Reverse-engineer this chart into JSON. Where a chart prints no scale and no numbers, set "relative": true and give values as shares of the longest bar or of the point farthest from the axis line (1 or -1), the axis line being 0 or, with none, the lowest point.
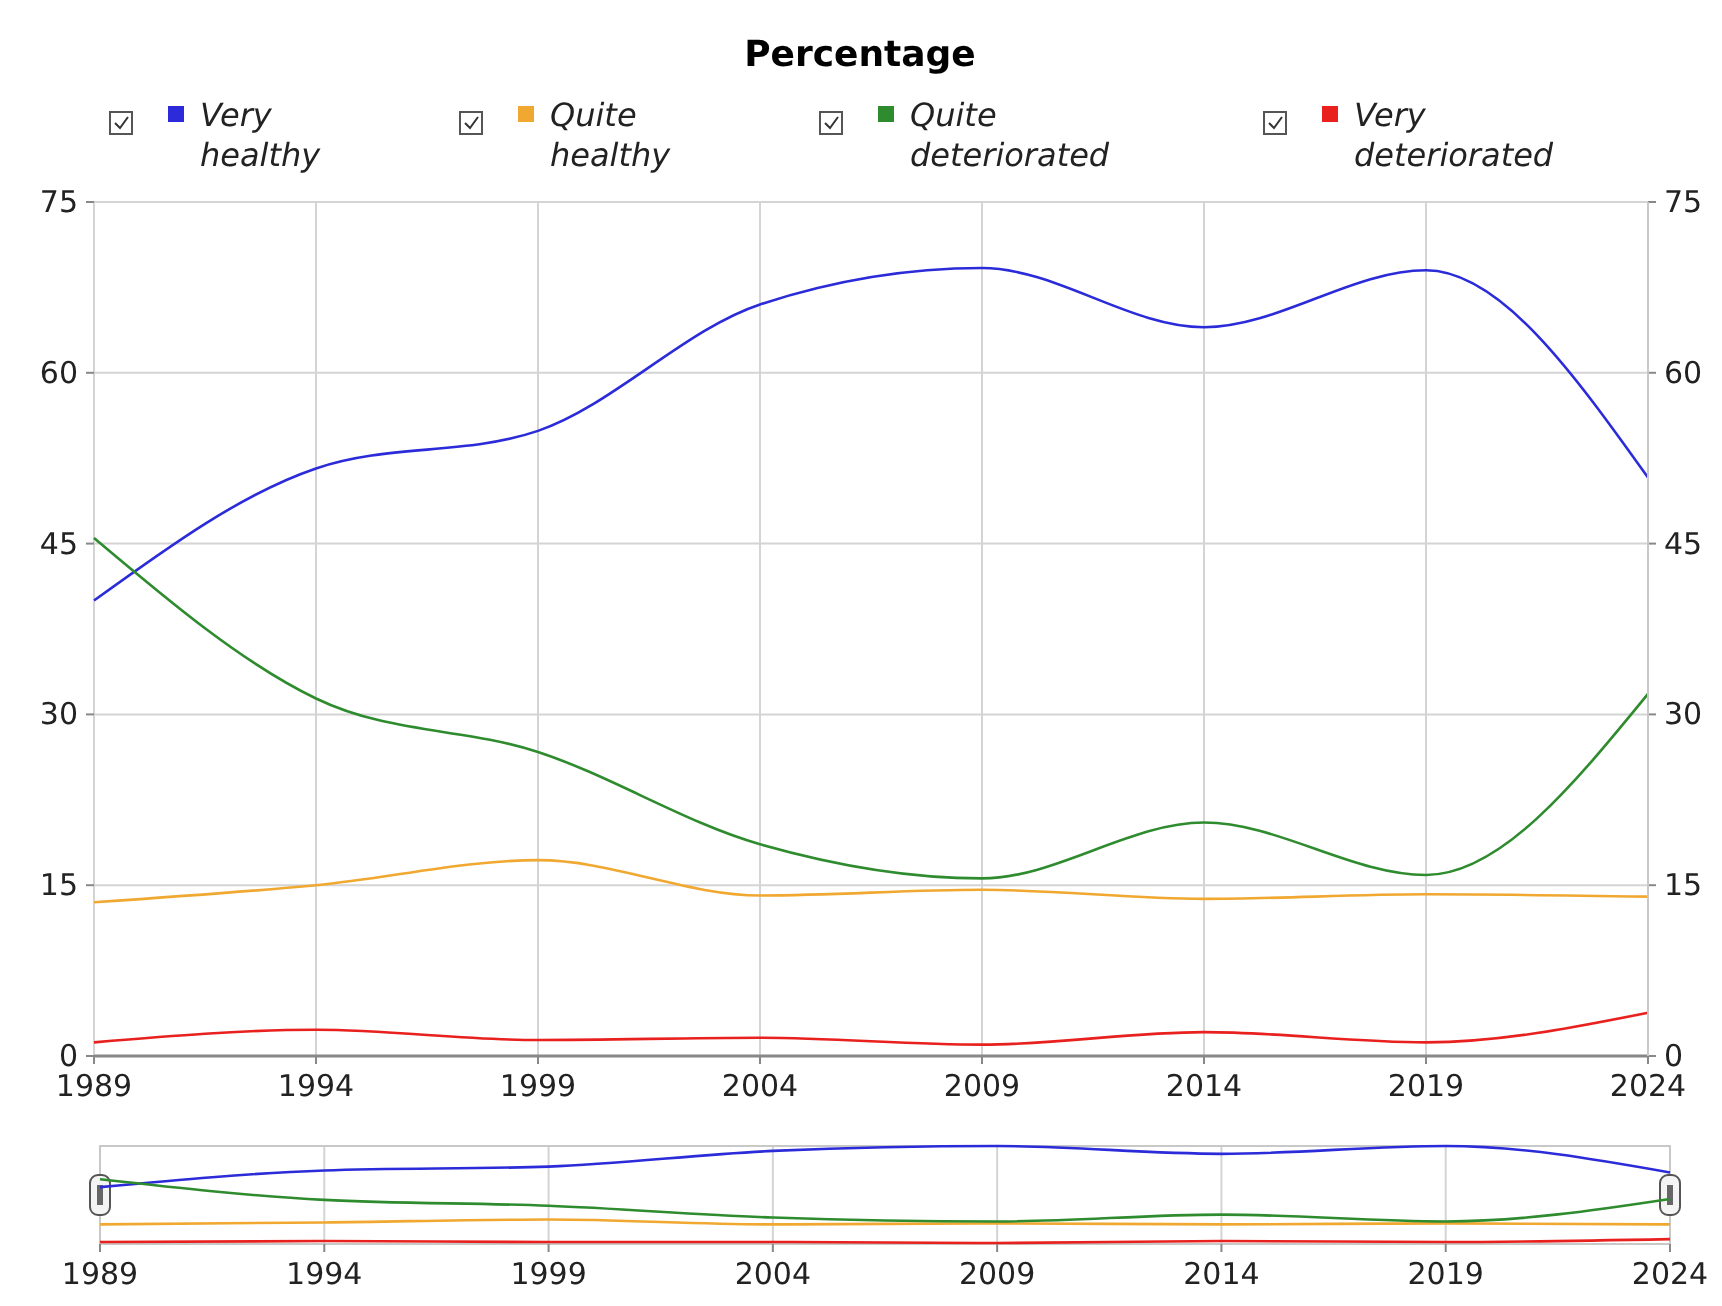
{
  "chart_data": [
    {
      "type": "line",
      "title": "Percentage",
      "x": [
        1989,
        1994,
        1999,
        2004,
        2009,
        2014,
        2019,
        2024
      ],
      "xlim": [
        1989,
        2024
      ],
      "xticks": [
        1989,
        1994,
        1999,
        2004,
        2009,
        2014,
        2019,
        2024
      ],
      "ylim": [
        0,
        75
      ],
      "yticks": [
        0,
        15,
        30,
        45,
        60,
        75
      ],
      "y2lim": [
        0,
        75
      ],
      "y2ticks": [
        0,
        15,
        30,
        45,
        60,
        75
      ],
      "grid": true,
      "legend": "top",
      "marker": "none",
      "series": [
        {
          "name": "Very healthy",
          "color": "#2b2bd9",
          "values": [
            40,
            51.6,
            54.9,
            66.0,
            69.2,
            64.0,
            69.0,
            50.8
          ]
        },
        {
          "name": "Quite healthy",
          "color": "#f0a830",
          "values": [
            13.5,
            15.0,
            17.2,
            14.1,
            14.6,
            13.8,
            14.2,
            14.0
          ]
        },
        {
          "name": "Quite deteriorated",
          "color": "#2e8b2e",
          "values": [
            45.5,
            31.4,
            26.7,
            18.6,
            15.6,
            20.5,
            15.9,
            31.8
          ]
        },
        {
          "name": "Very deteriorated",
          "color": "#e8201e",
          "values": [
            1.2,
            2.3,
            1.4,
            1.6,
            1.0,
            2.1,
            1.2,
            3.8
          ]
        }
      ]
    },
    {
      "type": "line",
      "relative": true,
      "x": [
        1989,
        1994,
        1999,
        2004,
        2009,
        2014,
        2019,
        2024
      ],
      "xlim": [
        1989,
        2024
      ],
      "xticks": [
        1989,
        1994,
        1999,
        2004,
        2009,
        2014,
        2019,
        2024
      ],
      "grid": "x",
      "tick_labels": "x",
      "marker": "none",
      "series": [
        {
          "color": "#2b2bd9",
          "values": [
            0.58,
            0.75,
            0.79,
            0.95,
            1,
            0.92,
            1.0,
            0.73
          ]
        },
        {
          "color": "#f0a830",
          "values": [
            0.2,
            0.22,
            0.25,
            0.2,
            0.21,
            0.2,
            0.21,
            0.2
          ]
        },
        {
          "color": "#2e8b2e",
          "values": [
            0.66,
            0.45,
            0.39,
            0.27,
            0.23,
            0.3,
            0.23,
            0.46
          ]
        },
        {
          "color": "#e8201e",
          "values": [
            0.02,
            0.03,
            0.02,
            0.02,
            0.01,
            0.03,
            0.02,
            0.05
          ]
        }
      ]
    }
  ]
}
